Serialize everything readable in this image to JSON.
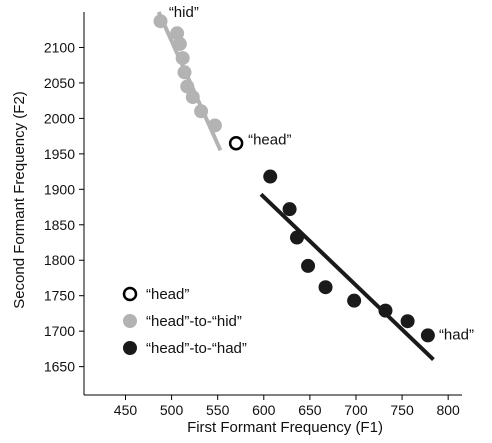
{
  "chart_data": {
    "type": "scatter",
    "xlabel": "First Formant Frequency (F1)",
    "ylabel": "Second Formant Frequency (F2)",
    "xlim": [
      405,
      815
    ],
    "ylim": [
      1610,
      2150
    ],
    "xticks": [
      450,
      500,
      550,
      600,
      650,
      700,
      750,
      800
    ],
    "yticks": [
      1650,
      1700,
      1750,
      1800,
      1850,
      1900,
      1950,
      2000,
      2050,
      2100
    ],
    "annotations": [
      {
        "text": "“hid”",
        "x": 497,
        "y": 2150
      },
      {
        "text": "“head”",
        "x": 583,
        "y": 1970
      },
      {
        "text": "“had”",
        "x": 790,
        "y": 1695
      }
    ],
    "series": [
      {
        "name": "“head”",
        "marker": "open-circle",
        "color": "#000000",
        "points": [
          [
            570,
            1965
          ]
        ]
      },
      {
        "name": "“head”-to-“hid”",
        "marker": "filled-circle",
        "color": "#b3b3b3",
        "points": [
          [
            488,
            2137
          ],
          [
            506,
            2120
          ],
          [
            509,
            2105
          ],
          [
            512,
            2085
          ],
          [
            514,
            2065
          ],
          [
            517,
            2045
          ],
          [
            523,
            2030
          ],
          [
            532,
            2010
          ],
          [
            547,
            1990
          ]
        ],
        "fit_line": [
          [
            486,
            2150
          ],
          [
            553,
            1955
          ]
        ]
      },
      {
        "name": "“head”-to-“had”",
        "marker": "filled-circle",
        "color": "#1a1a1a",
        "points": [
          [
            607,
            1918
          ],
          [
            628,
            1872
          ],
          [
            636,
            1832
          ],
          [
            648,
            1792
          ],
          [
            667,
            1762
          ],
          [
            698,
            1743
          ],
          [
            732,
            1729
          ],
          [
            756,
            1714
          ],
          [
            778,
            1694
          ]
        ],
        "fit_line": [
          [
            597,
            1893
          ],
          [
            784,
            1660
          ]
        ]
      }
    ],
    "legend": {
      "position": "bottom-left"
    }
  }
}
